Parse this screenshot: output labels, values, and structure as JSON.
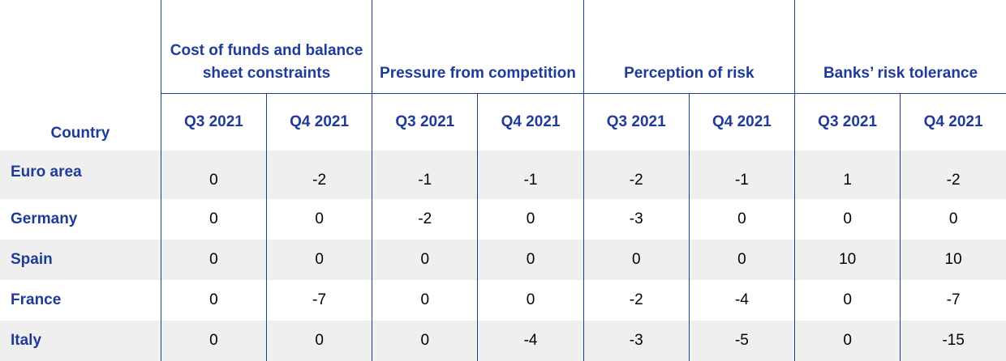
{
  "header": {
    "country_label": "Country",
    "groups": [
      {
        "label": "Cost of funds and balance sheet constraints"
      },
      {
        "label": "Pressure from competition"
      },
      {
        "label": "Perception of risk"
      },
      {
        "label": "Banks’ risk tolerance"
      }
    ],
    "periods": [
      "Q3 2021",
      "Q4 2021",
      "Q3 2021",
      "Q4 2021",
      "Q3 2021",
      "Q4 2021",
      "Q3 2021",
      "Q4 2021"
    ]
  },
  "rows": [
    {
      "country": "Euro area",
      "values": [
        "0",
        "-2",
        "-1",
        "-1",
        "-2",
        "-1",
        "1",
        "-2"
      ]
    },
    {
      "country": "Germany",
      "values": [
        "0",
        "0",
        "-2",
        "0",
        "-3",
        "0",
        "0",
        "0"
      ]
    },
    {
      "country": "Spain",
      "values": [
        "0",
        "0",
        "0",
        "0",
        "0",
        "0",
        "10",
        "10"
      ]
    },
    {
      "country": "France",
      "values": [
        "0",
        "-7",
        "0",
        "0",
        "-2",
        "-4",
        "0",
        "-7"
      ]
    },
    {
      "country": "Italy",
      "values": [
        "0",
        "0",
        "0",
        "-4",
        "-3",
        "-5",
        "0",
        "-15"
      ]
    }
  ]
}
